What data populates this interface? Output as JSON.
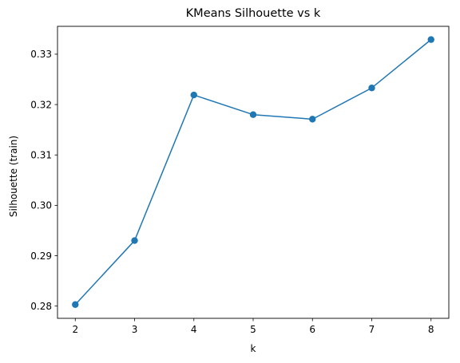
{
  "chart_data": {
    "type": "line",
    "title": "KMeans Silhouette vs k",
    "xlabel": "k",
    "ylabel": "Silhouette (train)",
    "x": [
      2,
      3,
      4,
      5,
      6,
      7,
      8
    ],
    "series": [
      {
        "values": [
          0.2803,
          0.293,
          0.3219,
          0.318,
          0.3171,
          0.3233,
          0.3329
        ],
        "color": "#1f77b4",
        "marker": "circle"
      }
    ],
    "xlim": [
      1.7,
      8.3
    ],
    "ylim": [
      0.27757,
      0.33553
    ],
    "x_ticks": [
      "2",
      "3",
      "4",
      "5",
      "6",
      "7",
      "8"
    ],
    "y_ticks": [
      "0.28",
      "0.29",
      "0.30",
      "0.31",
      "0.32",
      "0.33"
    ],
    "grid": false,
    "legend": "none"
  }
}
